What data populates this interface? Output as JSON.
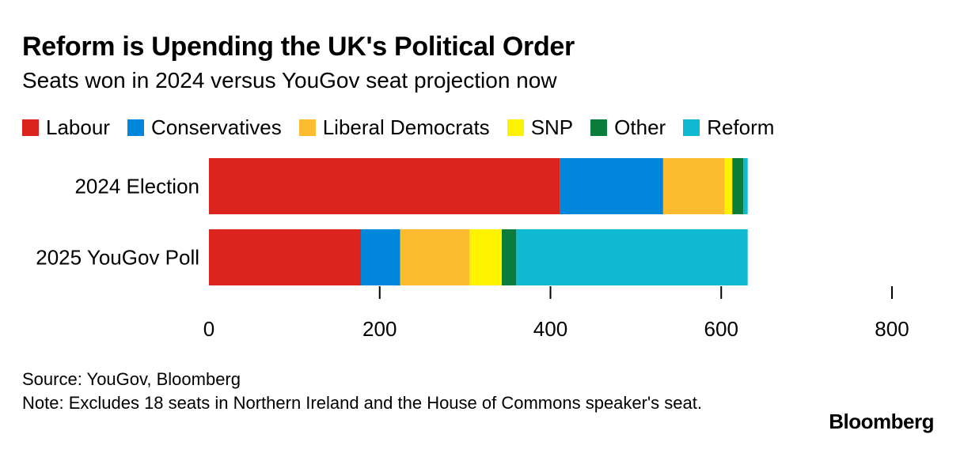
{
  "header": {
    "title": "Reform is Upending the UK's Political Order",
    "subtitle": "Seats won in 2024 versus YouGov seat projection now"
  },
  "legend": [
    {
      "label": "Labour",
      "color": "#dc241f"
    },
    {
      "label": "Conservatives",
      "color": "#0087dc"
    },
    {
      "label": "Liberal Democrats",
      "color": "#fdbb30"
    },
    {
      "label": "SNP",
      "color": "#fff200"
    },
    {
      "label": "Other",
      "color": "#0a7d3b"
    },
    {
      "label": "Reform",
      "color": "#0fb9d2"
    }
  ],
  "chart_data": {
    "type": "bar",
    "orientation": "horizontal",
    "stacked": true,
    "title": "Reform is Upending the UK's Political Order",
    "subtitle": "Seats won in 2024 versus YouGov seat projection now",
    "categories": [
      "2024 Election",
      "2025 YouGov Poll"
    ],
    "series": [
      {
        "name": "Labour",
        "color": "#dc241f",
        "values": [
          411,
          178
        ]
      },
      {
        "name": "Conservatives",
        "color": "#0087dc",
        "values": [
          121,
          46
        ]
      },
      {
        "name": "Liberal Democrats",
        "color": "#fdbb30",
        "values": [
          72,
          81
        ]
      },
      {
        "name": "SNP",
        "color": "#fff200",
        "values": [
          9,
          38
        ]
      },
      {
        "name": "Other",
        "color": "#0a7d3b",
        "values": [
          13,
          17
        ]
      },
      {
        "name": "Reform",
        "color": "#0fb9d2",
        "values": [
          5,
          271
        ]
      }
    ],
    "xlim": [
      0,
      800
    ],
    "xticks": [
      0,
      200,
      400,
      600,
      800
    ],
    "grid": false,
    "legend_position": "top"
  },
  "footer": {
    "source": "Source: YouGov, Bloomberg",
    "note": "Note: Excludes 18 seats in Northern Ireland and the House of Commons speaker's seat.",
    "brand": "Bloomberg"
  }
}
